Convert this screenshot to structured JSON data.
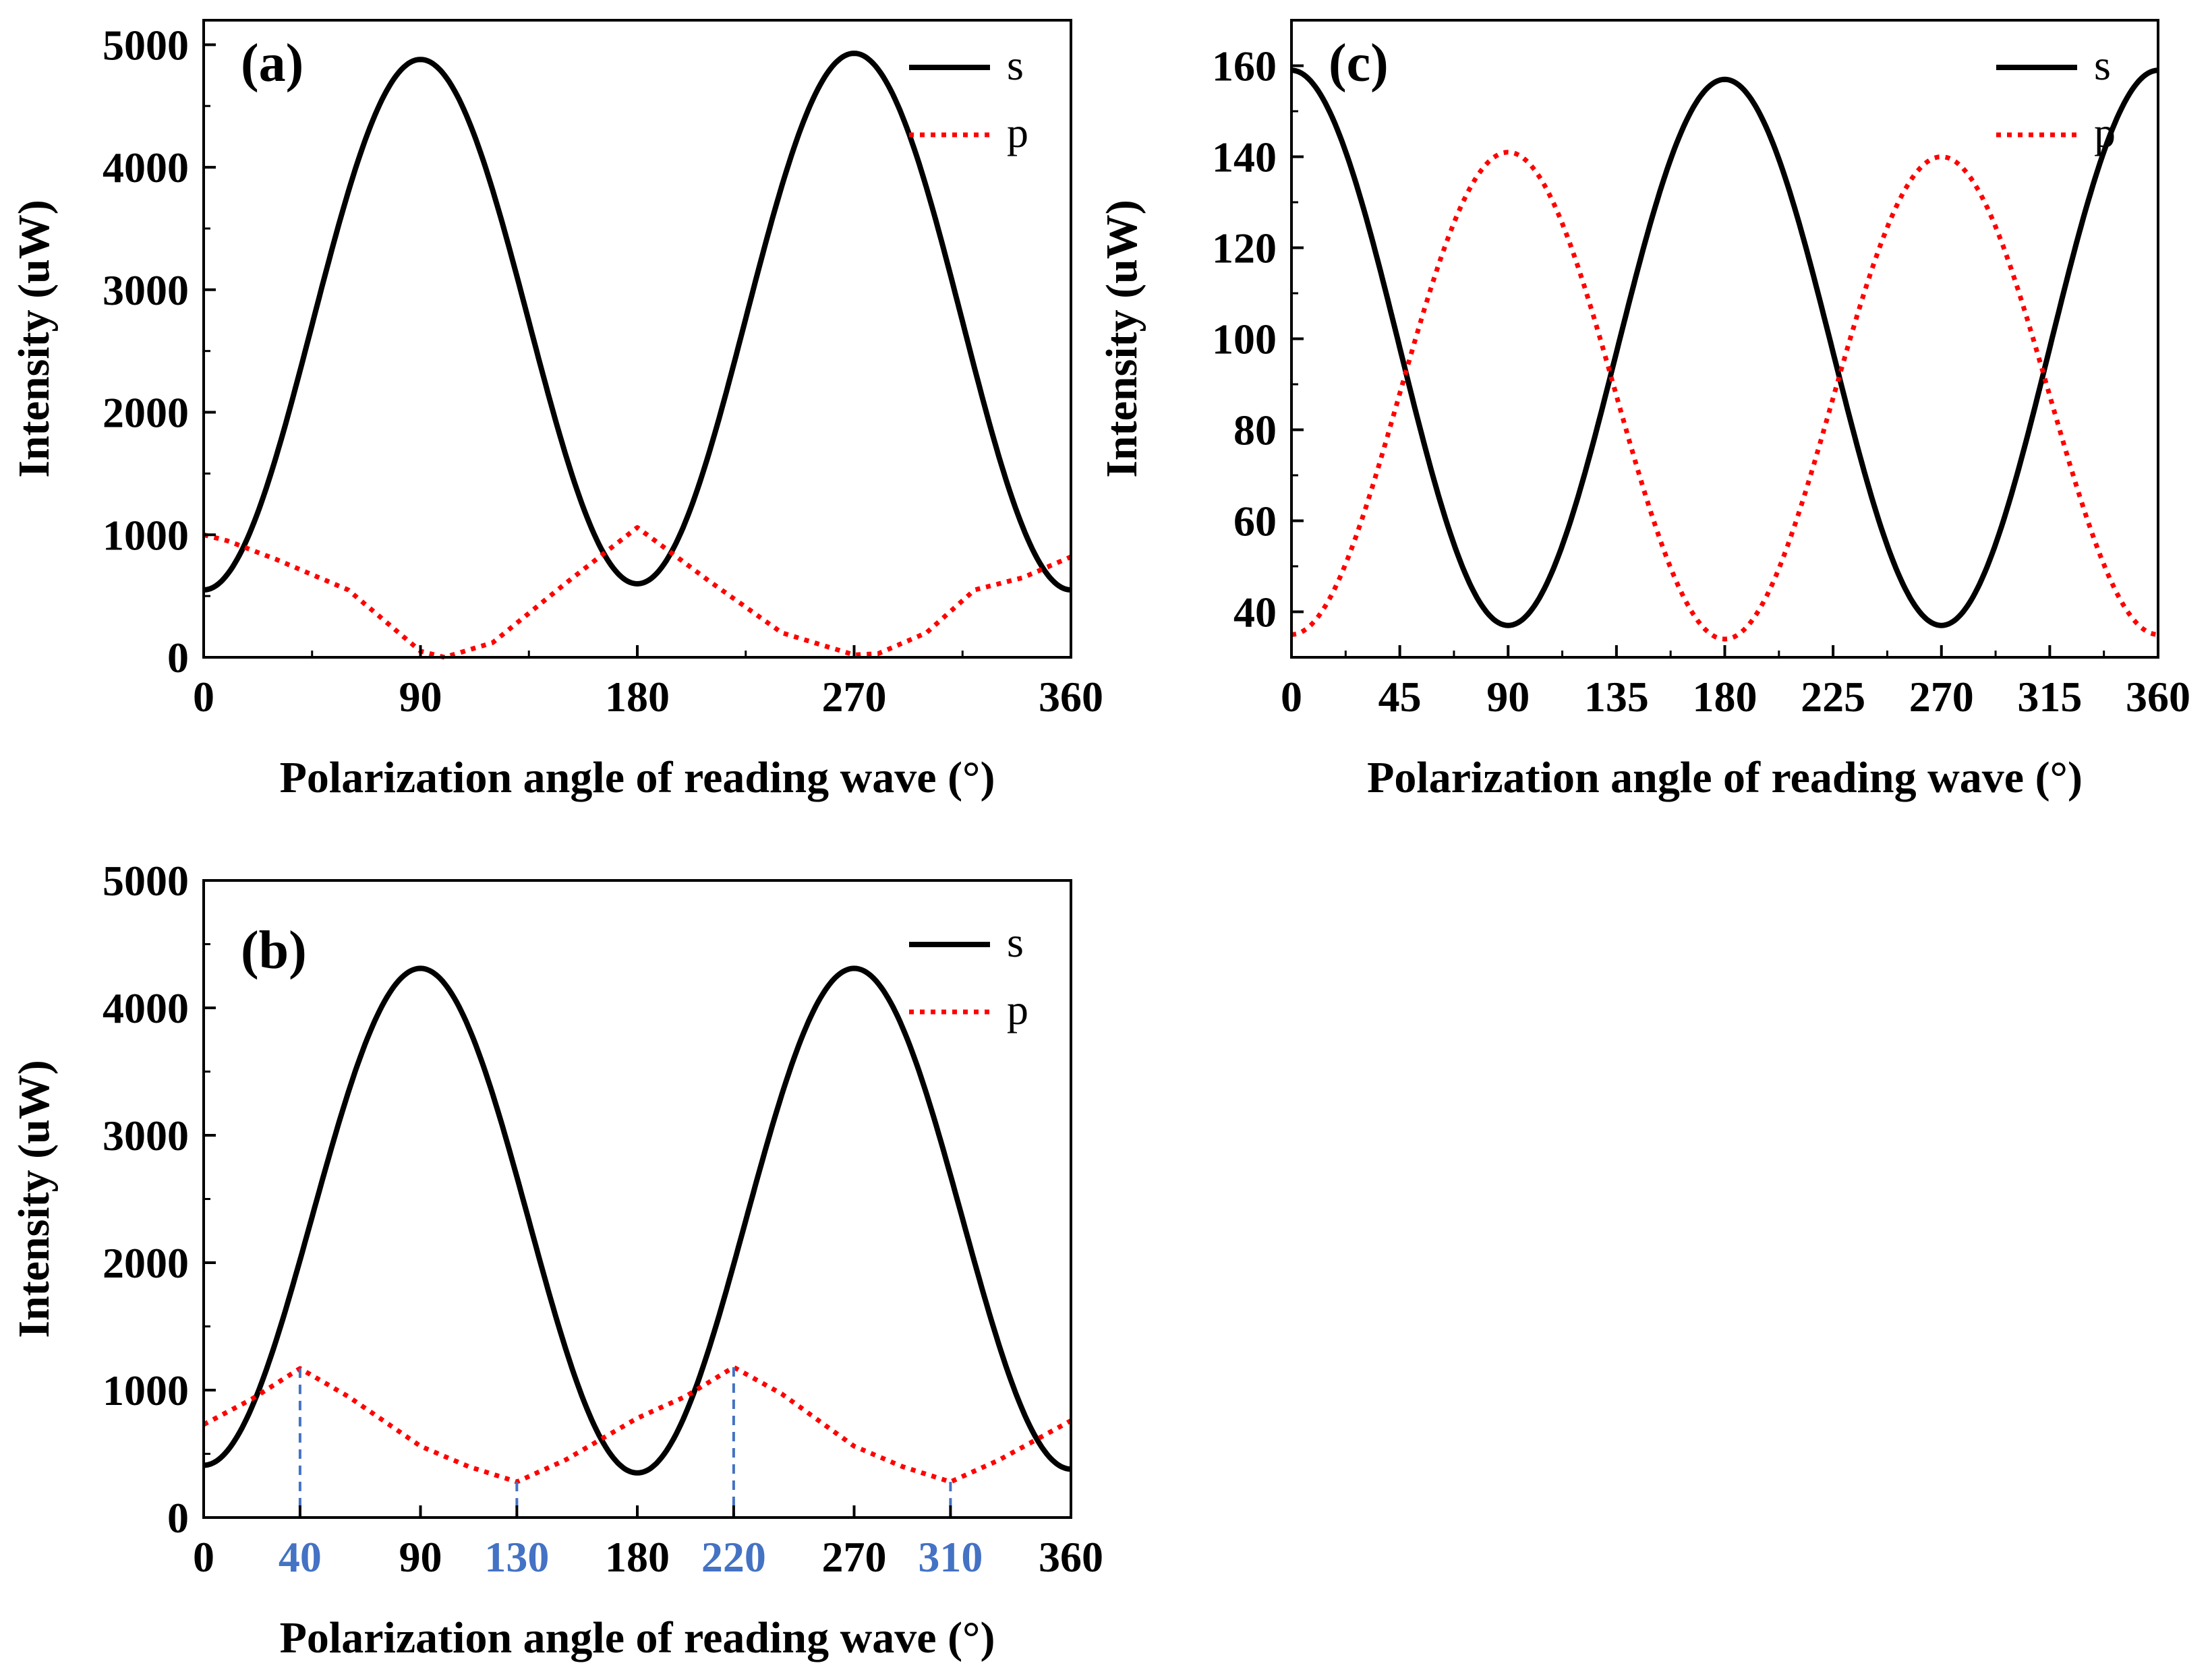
{
  "colors": {
    "s_line": "#000000",
    "p_line": "#ff0000",
    "marker": "#4472c4",
    "axis": "#000000",
    "background": "#ffffff"
  },
  "chart_data": [
    {
      "id": "a",
      "panel_label": "(a)",
      "type": "line",
      "xlabel": "Polarization angle of reading wave (°)",
      "ylabel": "Intensity (uW)",
      "xlim": [
        0,
        360
      ],
      "ylim": [
        0,
        5200
      ],
      "xticks": [
        0,
        90,
        180,
        270,
        360
      ],
      "yticks": [
        0,
        1000,
        2000,
        3000,
        4000,
        5000
      ],
      "y_minor_step": 500,
      "legend": {
        "position": "top-right",
        "entries": [
          "s",
          "p"
        ]
      },
      "series": [
        {
          "name": "s",
          "style": "solid",
          "x": [
            0,
            90,
            180,
            270,
            360
          ],
          "y": [
            550,
            4880,
            600,
            4930,
            550
          ],
          "shape": "cosine"
        },
        {
          "name": "p",
          "style": "dotted",
          "x": [
            0,
            10,
            30,
            60,
            90,
            100,
            120,
            150,
            180,
            210,
            240,
            270,
            280,
            300,
            320,
            340,
            360
          ],
          "y": [
            1000,
            950,
            800,
            550,
            50,
            0,
            120,
            600,
            1060,
            620,
            200,
            20,
            30,
            200,
            550,
            650,
            820
          ],
          "shape": "linear"
        }
      ]
    },
    {
      "id": "b",
      "panel_label": "(b)",
      "type": "line",
      "xlabel": "Polarization angle of reading wave (°)",
      "ylabel": "Intensity (uW)",
      "xlim": [
        0,
        360
      ],
      "ylim": [
        0,
        5000
      ],
      "xticks": [
        0,
        40,
        90,
        130,
        180,
        220,
        270,
        310,
        360
      ],
      "highlight_ticks": [
        40,
        130,
        220,
        310
      ],
      "yticks": [
        0,
        1000,
        2000,
        3000,
        4000,
        5000
      ],
      "y_minor_step": 500,
      "legend": {
        "position": "top-right",
        "entries": [
          "s",
          "p"
        ]
      },
      "markers": [
        {
          "x": 40,
          "y": 1170
        },
        {
          "x": 130,
          "y": 280
        },
        {
          "x": 220,
          "y": 1180
        },
        {
          "x": 310,
          "y": 280
        }
      ],
      "series": [
        {
          "name": "s",
          "style": "solid",
          "x": [
            0,
            90,
            180,
            270,
            360
          ],
          "y": [
            410,
            4310,
            350,
            4310,
            380
          ],
          "shape": "cosine"
        },
        {
          "name": "p",
          "style": "dotted",
          "x": [
            0,
            20,
            40,
            60,
            90,
            110,
            130,
            150,
            180,
            200,
            220,
            240,
            270,
            290,
            310,
            330,
            360
          ],
          "y": [
            730,
            930,
            1170,
            950,
            560,
            400,
            280,
            450,
            780,
            950,
            1180,
            970,
            560,
            400,
            280,
            450,
            760
          ],
          "shape": "linear"
        }
      ]
    },
    {
      "id": "c",
      "panel_label": "(c)",
      "type": "line",
      "xlabel": "Polarization angle of reading wave (°)",
      "ylabel": "Intensity (uW)",
      "xlim": [
        0,
        360
      ],
      "ylim": [
        30,
        170
      ],
      "xticks": [
        0,
        45,
        90,
        135,
        180,
        225,
        270,
        315,
        360
      ],
      "yticks": [
        40,
        60,
        80,
        100,
        120,
        140,
        160
      ],
      "y_minor_step": 10,
      "legend": {
        "position": "top-right",
        "entries": [
          "s",
          "p"
        ]
      },
      "series": [
        {
          "name": "s",
          "style": "solid",
          "x": [
            0,
            90,
            180,
            270,
            360
          ],
          "y": [
            159,
            37,
            157,
            37,
            159
          ],
          "shape": "cosine"
        },
        {
          "name": "p",
          "style": "dotted",
          "x": [
            0,
            90,
            180,
            270,
            360
          ],
          "y": [
            35,
            141,
            34,
            140,
            35
          ],
          "shape": "cosine"
        }
      ]
    }
  ]
}
